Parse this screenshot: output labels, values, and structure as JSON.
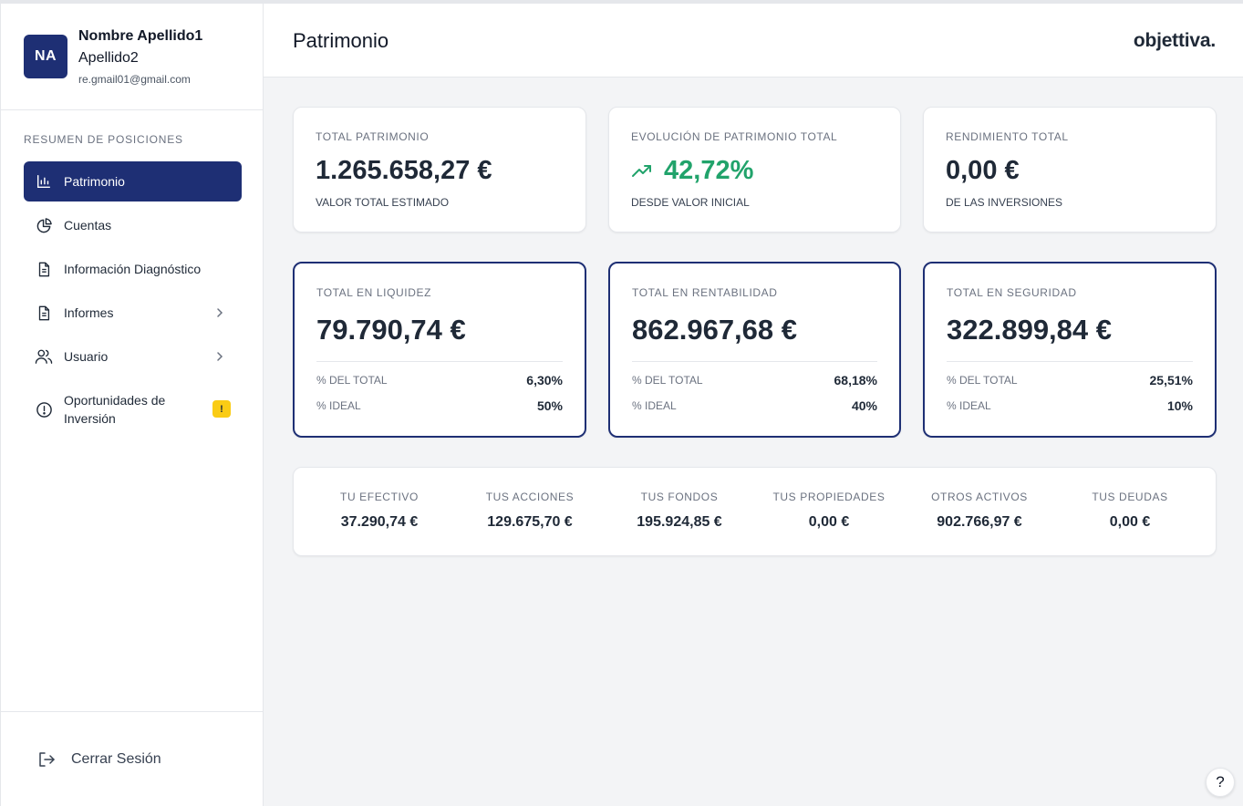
{
  "user": {
    "initials": "NA",
    "name_line1": "Nombre Apellido1",
    "name_line2": "Apellido2",
    "email": "re.gmail01@gmail.com"
  },
  "sidebar": {
    "heading": "RESUMEN DE POSICIONES",
    "items": [
      {
        "label": "Patrimonio",
        "icon": "bar-chart-icon",
        "active": true
      },
      {
        "label": "Cuentas",
        "icon": "pie-chart-icon"
      },
      {
        "label": "Información Diagnóstico",
        "icon": "document-icon"
      },
      {
        "label": "Informes",
        "icon": "document-icon",
        "chevron": true
      },
      {
        "label": "Usuario",
        "icon": "users-icon",
        "chevron": true
      },
      {
        "label": "Oportunidades de Inversión",
        "icon": "exclamation-circle-icon",
        "badge": "!"
      }
    ],
    "logout_label": "Cerrar Sesión"
  },
  "header": {
    "title": "Patrimonio",
    "brand": "objettiva."
  },
  "stats": [
    {
      "label": "TOTAL PATRIMONIO",
      "value": "1.265.658,27 €",
      "sub": "VALOR TOTAL ESTIMADO"
    },
    {
      "label": "EVOLUCIÓN DE PATRIMONIO TOTAL",
      "value": "42,72%",
      "sub": "DESDE VALOR INICIAL",
      "trend": "up",
      "color": "#21a36b"
    },
    {
      "label": "RENDIMIENTO TOTAL",
      "value": "0,00 €",
      "sub": "DE LAS INVERSIONES"
    }
  ],
  "allocations": [
    {
      "label": "TOTAL EN LIQUIDEZ",
      "value": "79.790,74 €",
      "pct_total_label": "% DEL TOTAL",
      "pct_total": "6,30%",
      "pct_ideal_label": "% IDEAL",
      "pct_ideal": "50%"
    },
    {
      "label": "TOTAL EN RENTABILIDAD",
      "value": "862.967,68 €",
      "pct_total_label": "% DEL TOTAL",
      "pct_total": "68,18%",
      "pct_ideal_label": "% IDEAL",
      "pct_ideal": "40%"
    },
    {
      "label": "TOTAL EN SEGURIDAD",
      "value": "322.899,84 €",
      "pct_total_label": "% DEL TOTAL",
      "pct_total": "25,51%",
      "pct_ideal_label": "% IDEAL",
      "pct_ideal": "10%"
    }
  ],
  "summary": [
    {
      "label": "TU EFECTIVO",
      "value": "37.290,74 €"
    },
    {
      "label": "TUS ACCIONES",
      "value": "129.675,70 €"
    },
    {
      "label": "TUS FONDOS",
      "value": "195.924,85 €"
    },
    {
      "label": "TUS PROPIEDADES",
      "value": "0,00 €"
    },
    {
      "label": "OTROS ACTIVOS",
      "value": "902.766,97 €"
    },
    {
      "label": "TUS DEUDAS",
      "value": "0,00 €"
    }
  ],
  "help_label": "?",
  "colors": {
    "primary": "#1e2f74",
    "positive": "#21a36b",
    "warning": "#facc15"
  }
}
